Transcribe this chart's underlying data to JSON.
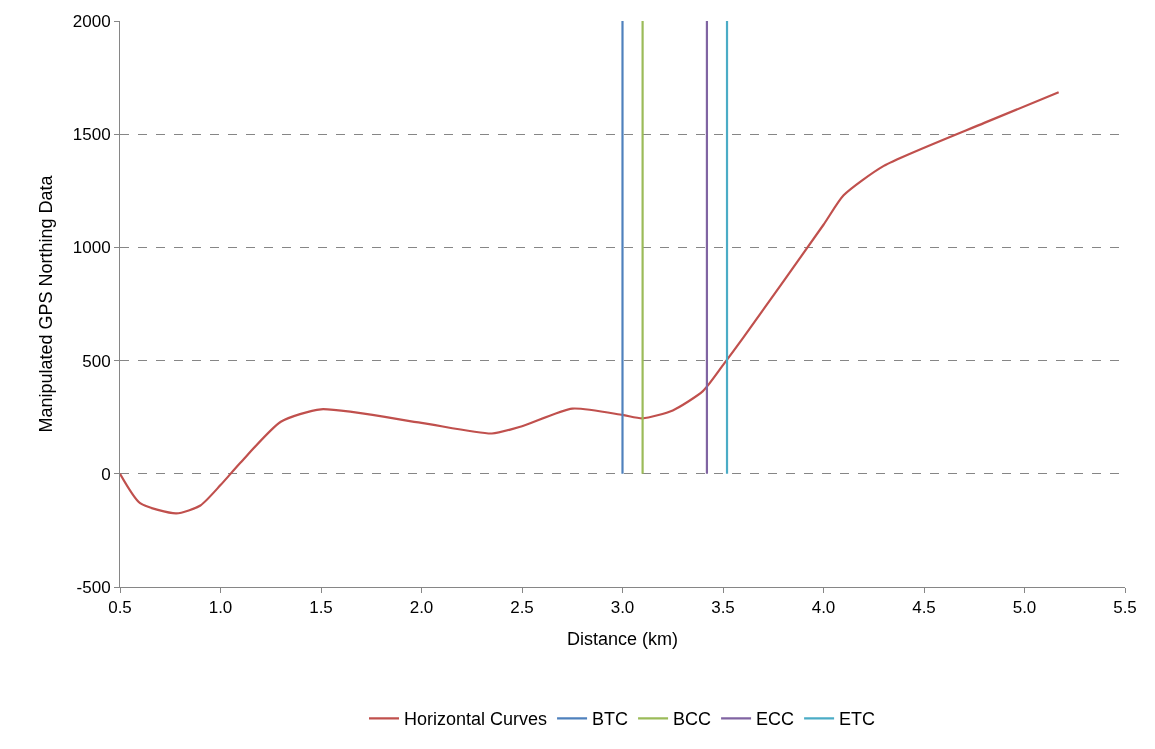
{
  "chart_data": {
    "type": "line",
    "xlabel": "Distance (km)",
    "ylabel": "Manipulated GPS Northing Data",
    "xlim": [
      0.5,
      5.5
    ],
    "xticks": [
      {
        "value": 0.5,
        "label": "0.5"
      },
      {
        "value": 1,
        "label": "1.0"
      },
      {
        "value": 1.5,
        "label": "1.5"
      },
      {
        "value": 2,
        "label": "2.0"
      },
      {
        "value": 2.5,
        "label": "2.5"
      },
      {
        "value": 3,
        "label": "3.0"
      },
      {
        "value": 3.5,
        "label": "3.5"
      },
      {
        "value": 4,
        "label": "4.0"
      },
      {
        "value": 4.5,
        "label": "4.5"
      },
      {
        "value": 5,
        "label": "5.0"
      },
      {
        "value": 5.5,
        "label": "5.5"
      }
    ],
    "ylim": [
      -500,
      2000
    ],
    "yticks": [
      -500,
      0,
      500,
      1000,
      1500,
      2000
    ],
    "grid": "y",
    "legend": "bottom",
    "marker": "none",
    "line_style": "solid",
    "series": [
      {
        "name": "Horizontal Curves",
        "color": "#c0504d",
        "x": [
          0.5,
          0.6,
          0.78,
          0.9,
          1.0,
          1.1,
          1.3,
          1.5,
          2.0,
          2.35,
          2.5,
          2.75,
          3.0,
          3.1,
          3.25,
          3.4,
          3.5,
          3.6,
          4.0,
          4.1,
          4.3,
          4.8,
          5.17
        ],
        "values": [
          0,
          -130,
          -175,
          -140,
          -50,
          50,
          230,
          285,
          225,
          178,
          210,
          288,
          260,
          245,
          280,
          365,
          480,
          600,
          1100,
          1230,
          1360,
          1550,
          1685
        ]
      },
      {
        "name": "BTC",
        "color": "#4f81bd",
        "x": [
          3.0,
          3.0
        ],
        "values": [
          0,
          2000
        ]
      },
      {
        "name": "BCC",
        "color": "#9bbb59",
        "x": [
          3.1,
          3.1
        ],
        "values": [
          0,
          2000
        ]
      },
      {
        "name": "ECC",
        "color": "#8064a2",
        "x": [
          3.42,
          3.42
        ],
        "values": [
          0,
          2000
        ]
      },
      {
        "name": "ETC",
        "color": "#4bacc6",
        "x": [
          3.52,
          3.52
        ],
        "values": [
          0,
          2000
        ]
      }
    ]
  }
}
